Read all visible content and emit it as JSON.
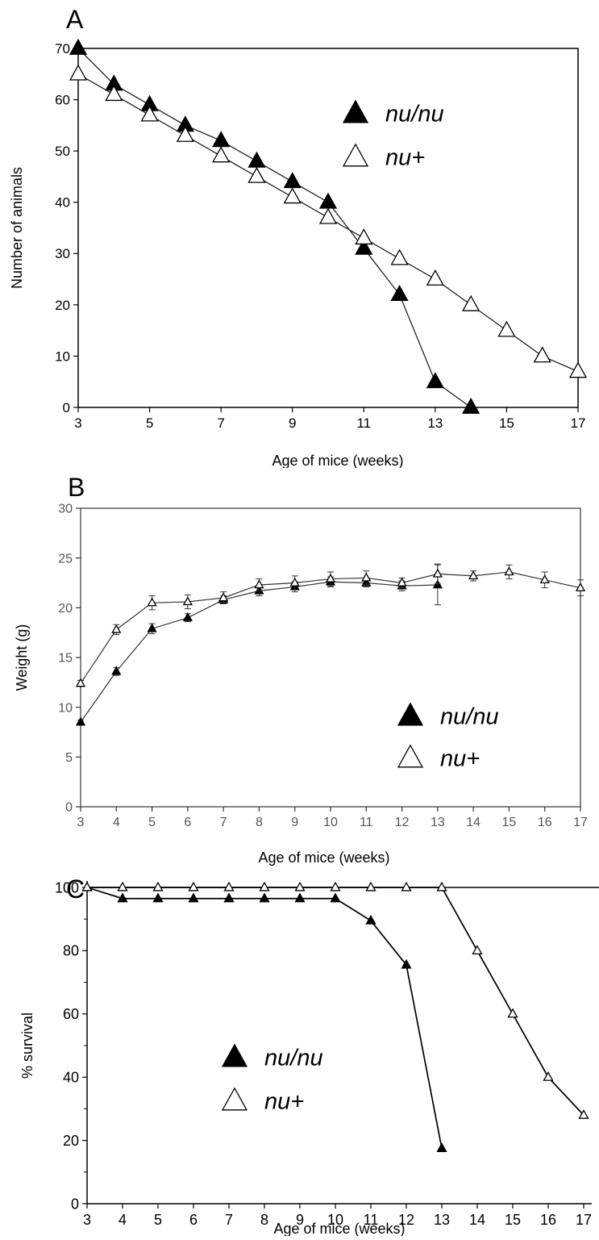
{
  "chart_data": [
    {
      "panel": "A",
      "type": "line",
      "xlabel": "Age of mice (weeks)",
      "ylabel": "Number of animals",
      "xlim": [
        3,
        17
      ],
      "ylim": [
        0,
        70
      ],
      "xticks": [
        3,
        5,
        7,
        9,
        11,
        13,
        15,
        17
      ],
      "yticks": [
        0,
        10,
        20,
        30,
        40,
        50,
        60,
        70
      ],
      "legend": {
        "position": "top-right"
      },
      "series": [
        {
          "name": "nu/nu",
          "marker": "filled-triangle",
          "x": [
            3,
            4,
            5,
            6,
            7,
            8,
            9,
            10,
            11,
            12,
            13,
            14
          ],
          "y": [
            70,
            63,
            59,
            55,
            52,
            48,
            44,
            40,
            31,
            22,
            5,
            0
          ]
        },
        {
          "name": "nu+",
          "marker": "open-triangle",
          "x": [
            3,
            4,
            5,
            6,
            7,
            8,
            9,
            10,
            11,
            12,
            13,
            14,
            15,
            16,
            17
          ],
          "y": [
            65,
            61,
            57,
            53,
            49,
            45,
            41,
            37,
            33,
            29,
            25,
            20,
            15,
            10,
            7
          ]
        }
      ]
    },
    {
      "panel": "B",
      "type": "line",
      "xlabel": "Age of mice (weeks)",
      "ylabel": "Weight (g)",
      "xlim": [
        3,
        17
      ],
      "ylim": [
        0,
        30
      ],
      "xticks": [
        3,
        4,
        5,
        6,
        7,
        8,
        9,
        10,
        11,
        12,
        13,
        14,
        15,
        16,
        17
      ],
      "yticks": [
        0,
        5,
        10,
        15,
        20,
        25,
        30
      ],
      "legend": {
        "position": "bottom-right"
      },
      "series": [
        {
          "name": "nu/nu",
          "marker": "filled-triangle",
          "x": [
            3,
            4,
            5,
            6,
            7,
            8,
            9,
            10,
            11,
            12,
            13
          ],
          "y": [
            8.5,
            13.6,
            17.9,
            19.0,
            20.8,
            21.7,
            22.1,
            22.6,
            22.5,
            22.2,
            22.3
          ],
          "err": [
            0.2,
            0.4,
            0.5,
            0.4,
            0.4,
            0.5,
            0.5,
            0.5,
            0.4,
            0.5,
            2.0
          ]
        },
        {
          "name": "nu+",
          "marker": "open-triangle",
          "x": [
            3,
            4,
            5,
            6,
            7,
            8,
            9,
            10,
            11,
            12,
            13,
            14,
            15,
            16,
            17
          ],
          "y": [
            12.4,
            17.8,
            20.5,
            20.6,
            21.0,
            22.3,
            22.5,
            22.9,
            23.0,
            22.5,
            23.4,
            23.2,
            23.6,
            22.8,
            22.0
          ],
          "err": [
            0.3,
            0.5,
            0.7,
            0.7,
            0.6,
            0.6,
            0.7,
            0.7,
            0.7,
            0.5,
            1.0,
            0.5,
            0.7,
            0.8,
            0.8
          ]
        }
      ]
    },
    {
      "panel": "C",
      "type": "line",
      "xlabel": "Age of mice (weeks)",
      "ylabel": "% survival",
      "xlim": [
        3,
        17
      ],
      "ylim": [
        0,
        100
      ],
      "xticks": [
        3,
        4,
        5,
        6,
        7,
        8,
        9,
        10,
        11,
        12,
        13,
        14,
        15,
        16,
        17
      ],
      "yticks": [
        0,
        20,
        40,
        60,
        80,
        100
      ],
      "legend": {
        "position": "bottom-left"
      },
      "series": [
        {
          "name": "nu/nu",
          "marker": "filled-triangle",
          "x": [
            3,
            4,
            5,
            6,
            7,
            8,
            9,
            10,
            11,
            12,
            13
          ],
          "y": [
            100,
            96.5,
            96.5,
            96.5,
            96.5,
            96.5,
            96.5,
            96.5,
            89.5,
            75.5,
            17.5
          ]
        },
        {
          "name": "nu+",
          "marker": "open-triangle",
          "x": [
            3,
            4,
            5,
            6,
            7,
            8,
            9,
            10,
            11,
            12,
            13,
            14,
            15,
            16,
            17
          ],
          "y": [
            100,
            100,
            100,
            100,
            100,
            100,
            100,
            100,
            100,
            100,
            100,
            80,
            60,
            40,
            28
          ]
        }
      ]
    }
  ]
}
